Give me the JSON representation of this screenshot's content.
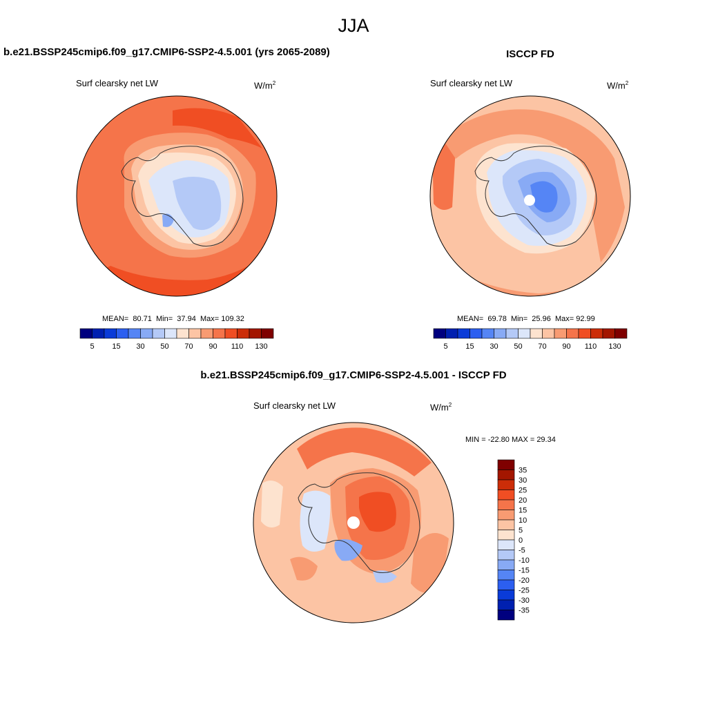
{
  "figure": {
    "season": "JJA",
    "units_base": "W/m",
    "units_exp": "2"
  },
  "panels": [
    {
      "title": "b.e21.BSSP245cmip6.f09_g17.CMIP6-SSP2-4.5.001 (yrs 2065-2089)",
      "variable": "Surf clearsky net LW",
      "mean_label": "MEAN=",
      "mean": "80.71",
      "min_label": "Min=",
      "min": "37.94",
      "max_label": "Max=",
      "max": "109.32",
      "colorbar_ticks": [
        "5",
        "15",
        "30",
        "50",
        "70",
        "90",
        "110",
        "130"
      ]
    },
    {
      "title": "ISCCP FD",
      "variable": "Surf clearsky net LW",
      "mean_label": "MEAN=",
      "mean": "69.78",
      "min_label": "Min=",
      "min": "25.96",
      "max_label": "Max=",
      "max": "92.99",
      "colorbar_ticks": [
        "5",
        "15",
        "30",
        "50",
        "70",
        "90",
        "110",
        "130"
      ]
    },
    {
      "title": "b.e21.BSSP245cmip6.f09_g17.CMIP6-SSP2-4.5.001 - ISCCP FD",
      "variable": "Surf clearsky net LW",
      "minmax": "MIN = -22.80 MAX =  29.34",
      "colorbar_ticks": [
        "35",
        "30",
        "25",
        "20",
        "15",
        "10",
        "5",
        "0",
        "-5",
        "-10",
        "-15",
        "-20",
        "-25",
        "-30",
        "-35"
      ]
    }
  ],
  "colors": {
    "scale": [
      "#00007f",
      "#0020b0",
      "#0a3bd8",
      "#2c5ff0",
      "#5585f5",
      "#88aaf5",
      "#b4c9f7",
      "#dce6fa",
      "#fde3cf",
      "#fcc4a4",
      "#f89b72",
      "#f5744a",
      "#f04e23",
      "#cc2d08",
      "#a31600",
      "#7f0000"
    ],
    "coast": "#333333"
  }
}
